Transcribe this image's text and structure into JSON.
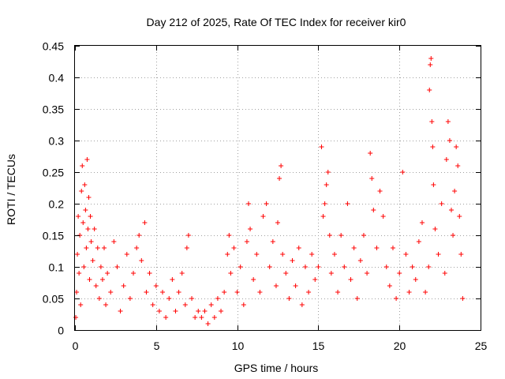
{
  "chart_data": {
    "type": "scatter",
    "title": "Day 212 of 2025, Rate Of TEC Index for receiver kir0",
    "xlabel": "GPS time / hours",
    "ylabel": "ROTI / TECUs",
    "xlim": [
      0,
      25
    ],
    "ylim": [
      0,
      0.45
    ],
    "grid": true,
    "marker": "+",
    "marker_color": "#ff0000",
    "xticks": [
      "0",
      "5",
      "10",
      "15",
      "20",
      "25"
    ],
    "yticks": [
      "0",
      "0.05",
      "0.1",
      "0.15",
      "0.2",
      "0.25",
      "0.3",
      "0.35",
      "0.4",
      "0.45"
    ],
    "series": [
      {
        "name": "ROTI",
        "points": [
          [
            0.05,
            0.02
          ],
          [
            0.1,
            0.06
          ],
          [
            0.15,
            0.12
          ],
          [
            0.2,
            0.18
          ],
          [
            0.25,
            0.09
          ],
          [
            0.3,
            0.15
          ],
          [
            0.35,
            0.04
          ],
          [
            0.4,
            0.22
          ],
          [
            0.45,
            0.26
          ],
          [
            0.5,
            0.17
          ],
          [
            0.55,
            0.1
          ],
          [
            0.6,
            0.23
          ],
          [
            0.65,
            0.19
          ],
          [
            0.7,
            0.13
          ],
          [
            0.75,
            0.27
          ],
          [
            0.8,
            0.16
          ],
          [
            0.85,
            0.21
          ],
          [
            0.9,
            0.08
          ],
          [
            0.95,
            0.18
          ],
          [
            1.0,
            0.14
          ],
          [
            1.1,
            0.11
          ],
          [
            1.2,
            0.16
          ],
          [
            1.3,
            0.07
          ],
          [
            1.4,
            0.13
          ],
          [
            1.5,
            0.05
          ],
          [
            1.6,
            0.1
          ],
          [
            1.7,
            0.08
          ],
          [
            1.8,
            0.13
          ],
          [
            1.9,
            0.04
          ],
          [
            2.0,
            0.09
          ],
          [
            2.2,
            0.06
          ],
          [
            2.4,
            0.14
          ],
          [
            2.6,
            0.1
          ],
          [
            2.8,
            0.03
          ],
          [
            3.0,
            0.07
          ],
          [
            3.2,
            0.12
          ],
          [
            3.4,
            0.05
          ],
          [
            3.6,
            0.09
          ],
          [
            3.8,
            0.13
          ],
          [
            3.95,
            0.15
          ],
          [
            4.1,
            0.11
          ],
          [
            4.3,
            0.17
          ],
          [
            4.4,
            0.06
          ],
          [
            4.6,
            0.09
          ],
          [
            4.8,
            0.04
          ],
          [
            5.0,
            0.07
          ],
          [
            5.2,
            0.03
          ],
          [
            5.4,
            0.06
          ],
          [
            5.6,
            0.02
          ],
          [
            5.8,
            0.05
          ],
          [
            6.0,
            0.08
          ],
          [
            6.2,
            0.03
          ],
          [
            6.4,
            0.06
          ],
          [
            6.6,
            0.09
          ],
          [
            6.8,
            0.04
          ],
          [
            6.9,
            0.13
          ],
          [
            7.0,
            0.15
          ],
          [
            7.2,
            0.05
          ],
          [
            7.4,
            0.02
          ],
          [
            7.6,
            0.03
          ],
          [
            7.8,
            0.02
          ],
          [
            8.0,
            0.03
          ],
          [
            8.2,
            0.01
          ],
          [
            8.4,
            0.04
          ],
          [
            8.6,
            0.02
          ],
          [
            8.8,
            0.05
          ],
          [
            9.0,
            0.03
          ],
          [
            9.2,
            0.06
          ],
          [
            9.4,
            0.12
          ],
          [
            9.5,
            0.15
          ],
          [
            9.6,
            0.09
          ],
          [
            9.8,
            0.13
          ],
          [
            10.0,
            0.06
          ],
          [
            10.2,
            0.1
          ],
          [
            10.4,
            0.04
          ],
          [
            10.6,
            0.14
          ],
          [
            10.7,
            0.2
          ],
          [
            10.8,
            0.16
          ],
          [
            11.0,
            0.08
          ],
          [
            11.2,
            0.12
          ],
          [
            11.4,
            0.06
          ],
          [
            11.6,
            0.18
          ],
          [
            11.8,
            0.2
          ],
          [
            12.0,
            0.1
          ],
          [
            12.2,
            0.14
          ],
          [
            12.4,
            0.07
          ],
          [
            12.5,
            0.17
          ],
          [
            12.6,
            0.24
          ],
          [
            12.7,
            0.26
          ],
          [
            12.8,
            0.12
          ],
          [
            13.0,
            0.09
          ],
          [
            13.2,
            0.05
          ],
          [
            13.4,
            0.11
          ],
          [
            13.6,
            0.07
          ],
          [
            13.8,
            0.13
          ],
          [
            14.0,
            0.04
          ],
          [
            14.2,
            0.1
          ],
          [
            14.4,
            0.06
          ],
          [
            14.6,
            0.12
          ],
          [
            14.8,
            0.08
          ],
          [
            15.0,
            0.1
          ],
          [
            15.2,
            0.29
          ],
          [
            15.3,
            0.18
          ],
          [
            15.4,
            0.2
          ],
          [
            15.5,
            0.23
          ],
          [
            15.6,
            0.25
          ],
          [
            15.7,
            0.15
          ],
          [
            15.8,
            0.09
          ],
          [
            16.0,
            0.12
          ],
          [
            16.2,
            0.06
          ],
          [
            16.4,
            0.15
          ],
          [
            16.6,
            0.1
          ],
          [
            16.8,
            0.2
          ],
          [
            17.0,
            0.08
          ],
          [
            17.2,
            0.13
          ],
          [
            17.4,
            0.05
          ],
          [
            17.6,
            0.11
          ],
          [
            17.8,
            0.15
          ],
          [
            18.0,
            0.09
          ],
          [
            18.2,
            0.28
          ],
          [
            18.3,
            0.24
          ],
          [
            18.4,
            0.19
          ],
          [
            18.6,
            0.13
          ],
          [
            18.8,
            0.22
          ],
          [
            19.0,
            0.18
          ],
          [
            19.2,
            0.1
          ],
          [
            19.4,
            0.07
          ],
          [
            19.6,
            0.13
          ],
          [
            19.8,
            0.05
          ],
          [
            20.0,
            0.09
          ],
          [
            20.2,
            0.25
          ],
          [
            20.4,
            0.12
          ],
          [
            20.6,
            0.06
          ],
          [
            20.8,
            0.1
          ],
          [
            21.0,
            0.08
          ],
          [
            21.2,
            0.14
          ],
          [
            21.4,
            0.17
          ],
          [
            21.6,
            0.06
          ],
          [
            21.8,
            0.1
          ],
          [
            21.85,
            0.38
          ],
          [
            21.9,
            0.42
          ],
          [
            21.95,
            0.43
          ],
          [
            22.0,
            0.33
          ],
          [
            22.05,
            0.29
          ],
          [
            22.1,
            0.23
          ],
          [
            22.2,
            0.16
          ],
          [
            22.4,
            0.12
          ],
          [
            22.6,
            0.2
          ],
          [
            22.8,
            0.09
          ],
          [
            22.9,
            0.27
          ],
          [
            23.0,
            0.33
          ],
          [
            23.1,
            0.3
          ],
          [
            23.2,
            0.19
          ],
          [
            23.3,
            0.15
          ],
          [
            23.4,
            0.22
          ],
          [
            23.5,
            0.29
          ],
          [
            23.6,
            0.26
          ],
          [
            23.7,
            0.18
          ],
          [
            23.8,
            0.12
          ],
          [
            23.9,
            0.05
          ]
        ]
      }
    ]
  }
}
